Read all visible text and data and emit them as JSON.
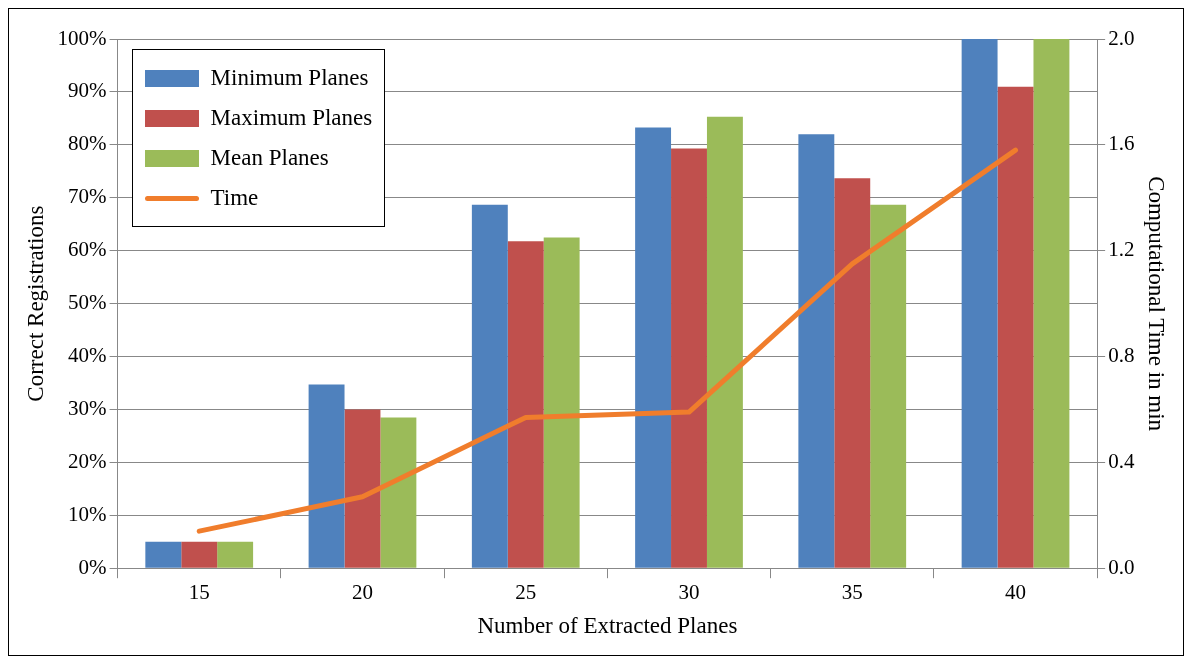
{
  "chart_data": {
    "type": "bar",
    "xlabel": "Number of Extracted Planes",
    "ylabel": "Correct Registrations",
    "y2label": "Computational Time in min",
    "categories": [
      "15",
      "20",
      "25",
      "30",
      "35",
      "40"
    ],
    "series": [
      {
        "name": "Minimum Planes",
        "color": "#4f81bd",
        "values": [
          5,
          34.7,
          68.7,
          83.3,
          82,
          100
        ]
      },
      {
        "name": "Maximum Planes",
        "color": "#c0504d",
        "values": [
          5,
          30,
          61.8,
          79.3,
          73.7,
          91
        ]
      },
      {
        "name": "Mean Planes",
        "color": "#9bbb59",
        "values": [
          5,
          28.5,
          62.5,
          85.3,
          68.7,
          100
        ]
      },
      {
        "name": "Time",
        "type": "line",
        "axis": "y2",
        "color": "#f07d2c",
        "values": [
          0.14,
          0.27,
          0.57,
          0.59,
          1.15,
          1.58
        ]
      }
    ],
    "ylim": [
      0,
      100
    ],
    "yticks": [
      {
        "value": 0,
        "label": "0%"
      },
      {
        "value": 10,
        "label": "10%"
      },
      {
        "value": 20,
        "label": "20%"
      },
      {
        "value": 30,
        "label": "30%"
      },
      {
        "value": 40,
        "label": "40%"
      },
      {
        "value": 50,
        "label": "50%"
      },
      {
        "value": 60,
        "label": "60%"
      },
      {
        "value": 70,
        "label": "70%"
      },
      {
        "value": 80,
        "label": "80%"
      },
      {
        "value": 90,
        "label": "90%"
      },
      {
        "value": 100,
        "label": "100%"
      }
    ],
    "y2lim": [
      0,
      2
    ],
    "y2ticks": [
      {
        "value": 0,
        "label": "0.0"
      },
      {
        "value": 0.4,
        "label": "0.4"
      },
      {
        "value": 0.8,
        "label": "0.8"
      },
      {
        "value": 1.2,
        "label": "1.2"
      },
      {
        "value": 1.6,
        "label": "1.6"
      },
      {
        "value": 2,
        "label": "2.0"
      }
    ],
    "grid": "y",
    "legend": "top left",
    "marker": "none",
    "line_style": "solid"
  }
}
